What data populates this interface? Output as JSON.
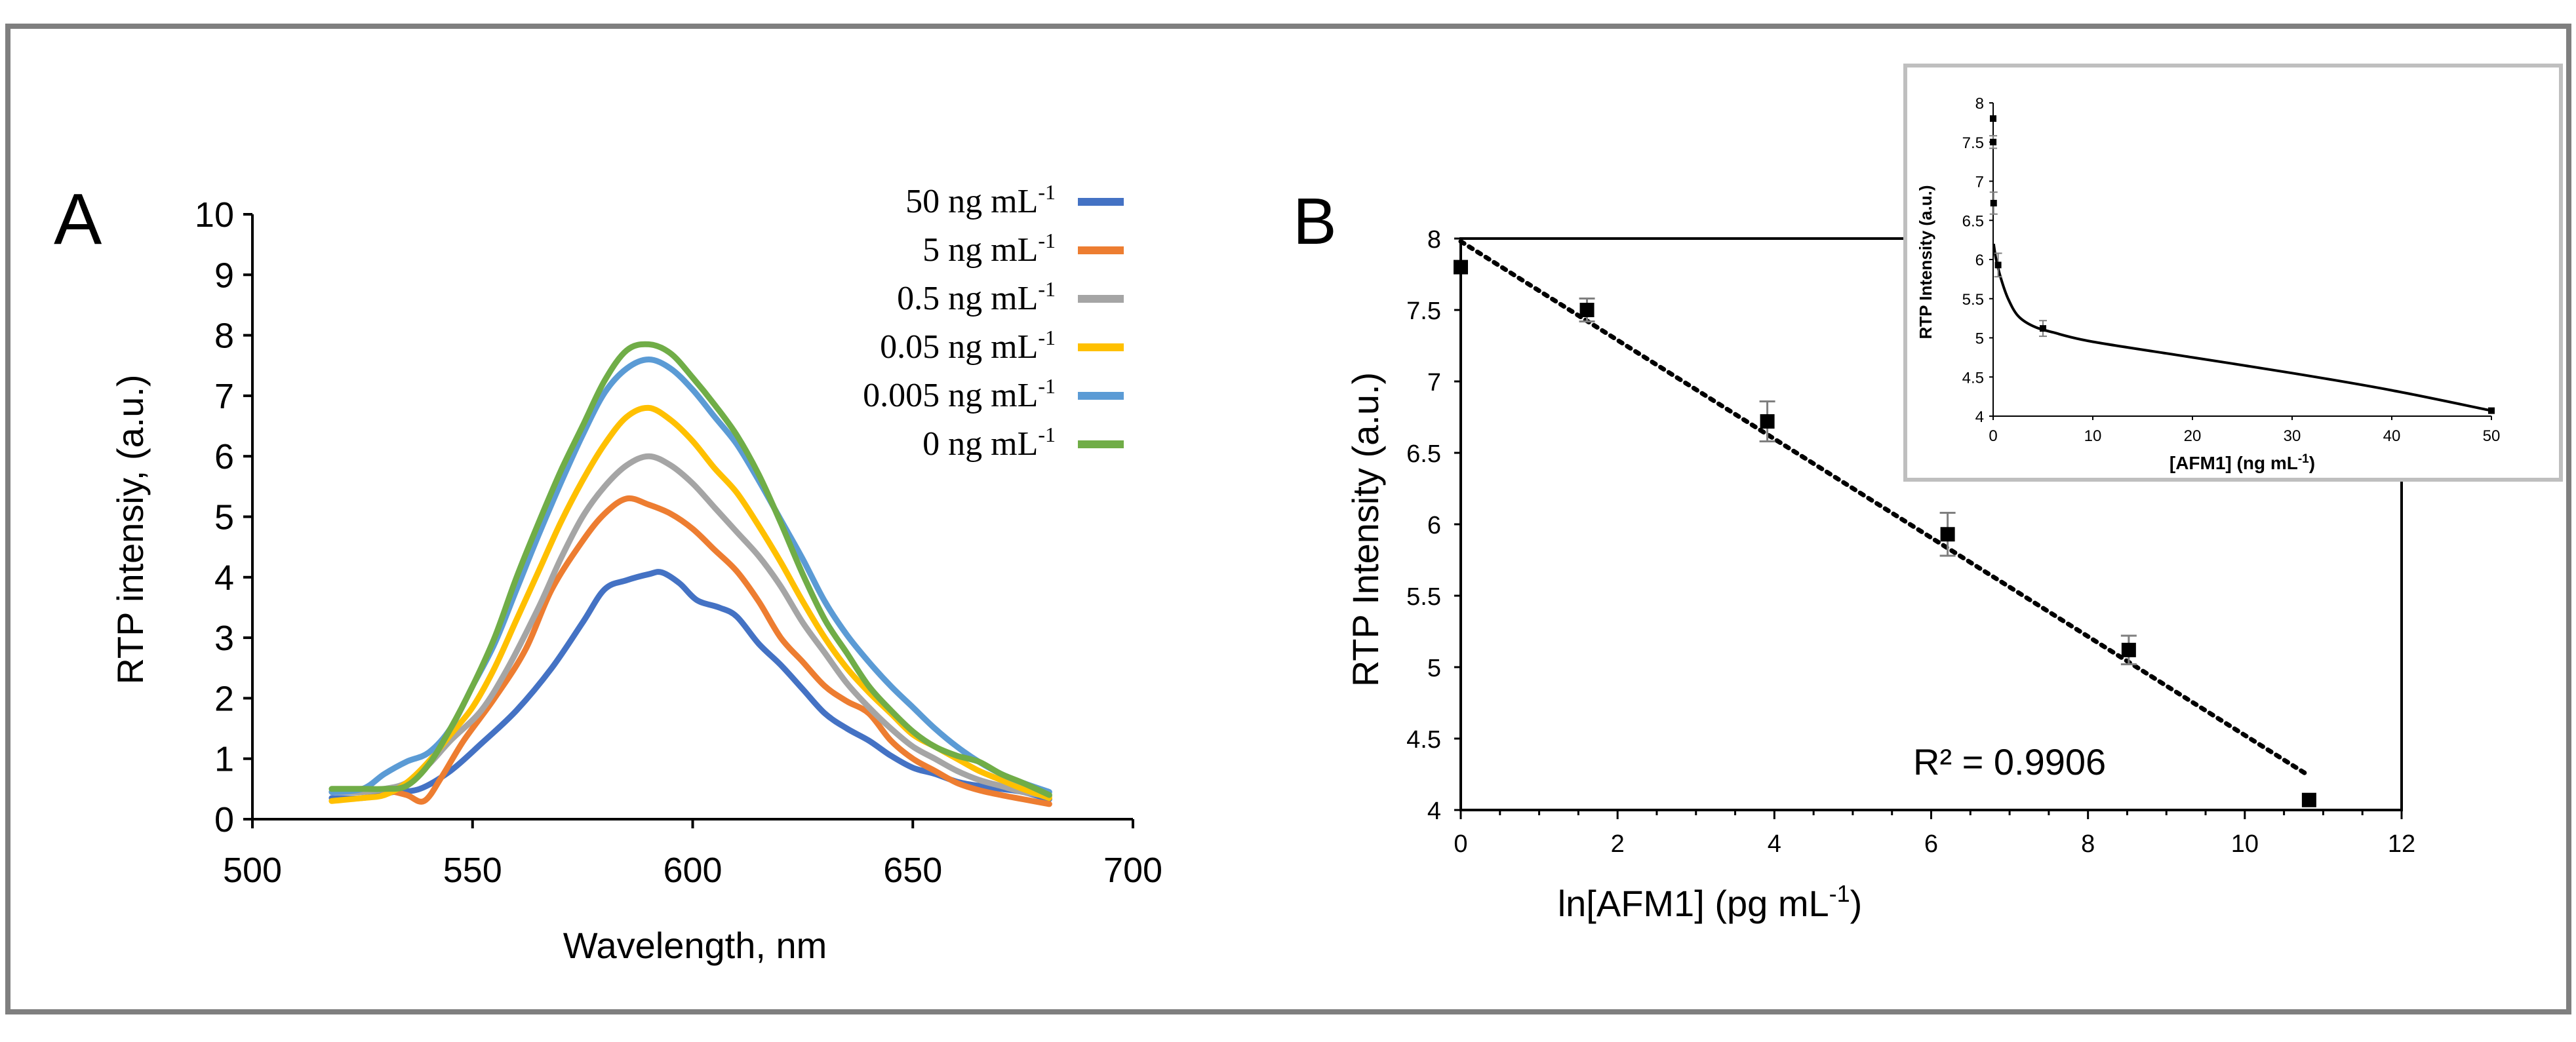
{
  "colors": {
    "frame": "#7f7f7f",
    "inset_frame": "#bfbfbf",
    "blue_dark": "#4472c4",
    "orange": "#ed7d31",
    "gray": "#a5a5a5",
    "yellow": "#ffc000",
    "blue_light": "#5b9bd5",
    "green": "#70ad47",
    "axis": "#000000",
    "error_bar": "#7f7f7f"
  },
  "panel_a": {
    "label": "A",
    "chart_data": {
      "type": "line",
      "xlabel": "Wavelength, nm",
      "ylabel": "RTP intensiy, (a.u.)",
      "xlim": [
        500,
        700
      ],
      "ylim": [
        0,
        10
      ],
      "x_ticks": [
        500,
        550,
        600,
        650,
        700
      ],
      "y_ticks": [
        0,
        1,
        2,
        3,
        4,
        5,
        6,
        7,
        8,
        9,
        10
      ],
      "x_tick_labels": [
        "500",
        "550",
        "600",
        "650",
        "700"
      ],
      "y_tick_labels": [
        "0",
        "1",
        "2",
        "3",
        "4",
        "5",
        "6",
        "7",
        "8",
        "9",
        "10"
      ],
      "legend_position": "top-right",
      "series": [
        {
          "name": "50 ng mL",
          "name_sup": "-1",
          "color": "#4472c4",
          "points": [
            [
              518,
              0.35
            ],
            [
              525,
              0.35
            ],
            [
              532,
              0.45
            ],
            [
              538,
              0.5
            ],
            [
              545,
              0.8
            ],
            [
              552,
              1.25
            ],
            [
              560,
              1.8
            ],
            [
              568,
              2.5
            ],
            [
              575,
              3.25
            ],
            [
              580,
              3.8
            ],
            [
              585,
              3.95
            ],
            [
              590,
              4.05
            ],
            [
              593,
              4.08
            ],
            [
              597,
              3.9
            ],
            [
              601,
              3.62
            ],
            [
              606,
              3.5
            ],
            [
              610,
              3.35
            ],
            [
              615,
              2.9
            ],
            [
              620,
              2.55
            ],
            [
              625,
              2.15
            ],
            [
              630,
              1.75
            ],
            [
              635,
              1.5
            ],
            [
              640,
              1.3
            ],
            [
              645,
              1.05
            ],
            [
              650,
              0.85
            ],
            [
              655,
              0.75
            ],
            [
              660,
              0.62
            ],
            [
              665,
              0.55
            ],
            [
              670,
              0.5
            ],
            [
              675,
              0.45
            ],
            [
              681,
              0.33
            ]
          ]
        },
        {
          "name": "5 ng mL",
          "name_sup": "-1",
          "color": "#ed7d31",
          "points": [
            [
              518,
              0.45
            ],
            [
              525,
              0.5
            ],
            [
              530,
              0.48
            ],
            [
              535,
              0.4
            ],
            [
              539,
              0.3
            ],
            [
              543,
              0.7
            ],
            [
              548,
              1.3
            ],
            [
              555,
              2.0
            ],
            [
              562,
              2.8
            ],
            [
              568,
              3.8
            ],
            [
              575,
              4.6
            ],
            [
              580,
              5.05
            ],
            [
              585,
              5.3
            ],
            [
              590,
              5.2
            ],
            [
              595,
              5.05
            ],
            [
              600,
              4.8
            ],
            [
              605,
              4.45
            ],
            [
              610,
              4.1
            ],
            [
              615,
              3.6
            ],
            [
              620,
              3.0
            ],
            [
              625,
              2.6
            ],
            [
              630,
              2.2
            ],
            [
              635,
              1.95
            ],
            [
              640,
              1.75
            ],
            [
              645,
              1.3
            ],
            [
              650,
              1.0
            ],
            [
              655,
              0.8
            ],
            [
              660,
              0.6
            ],
            [
              665,
              0.48
            ],
            [
              670,
              0.4
            ],
            [
              675,
              0.33
            ],
            [
              681,
              0.25
            ]
          ]
        },
        {
          "name": "0.5 ng mL",
          "name_sup": "-1",
          "color": "#a5a5a5",
          "points": [
            [
              518,
              0.45
            ],
            [
              525,
              0.45
            ],
            [
              530,
              0.5
            ],
            [
              535,
              0.6
            ],
            [
              540,
              0.9
            ],
            [
              545,
              1.3
            ],
            [
              552,
              1.8
            ],
            [
              558,
              2.5
            ],
            [
              565,
              3.5
            ],
            [
              570,
              4.3
            ],
            [
              575,
              5.0
            ],
            [
              580,
              5.5
            ],
            [
              585,
              5.85
            ],
            [
              590,
              6.0
            ],
            [
              595,
              5.85
            ],
            [
              600,
              5.55
            ],
            [
              605,
              5.15
            ],
            [
              610,
              4.75
            ],
            [
              615,
              4.35
            ],
            [
              620,
              3.85
            ],
            [
              625,
              3.25
            ],
            [
              630,
              2.75
            ],
            [
              635,
              2.25
            ],
            [
              640,
              1.85
            ],
            [
              645,
              1.5
            ],
            [
              650,
              1.2
            ],
            [
              655,
              1.0
            ],
            [
              660,
              0.8
            ],
            [
              665,
              0.65
            ],
            [
              670,
              0.55
            ],
            [
              675,
              0.45
            ],
            [
              681,
              0.38
            ]
          ]
        },
        {
          "name": "0.05 ng mL",
          "name_sup": "-1",
          "color": "#ffc000",
          "points": [
            [
              518,
              0.3
            ],
            [
              525,
              0.35
            ],
            [
              530,
              0.4
            ],
            [
              535,
              0.6
            ],
            [
              540,
              0.95
            ],
            [
              545,
              1.4
            ],
            [
              550,
              1.85
            ],
            [
              555,
              2.5
            ],
            [
              560,
              3.3
            ],
            [
              565,
              4.1
            ],
            [
              570,
              4.9
            ],
            [
              575,
              5.6
            ],
            [
              580,
              6.2
            ],
            [
              585,
              6.65
            ],
            [
              590,
              6.8
            ],
            [
              595,
              6.6
            ],
            [
              600,
              6.25
            ],
            [
              605,
              5.8
            ],
            [
              610,
              5.4
            ],
            [
              615,
              4.85
            ],
            [
              620,
              4.25
            ],
            [
              625,
              3.6
            ],
            [
              630,
              3.0
            ],
            [
              635,
              2.5
            ],
            [
              640,
              2.1
            ],
            [
              645,
              1.75
            ],
            [
              650,
              1.4
            ],
            [
              655,
              1.2
            ],
            [
              660,
              1.0
            ],
            [
              665,
              0.8
            ],
            [
              670,
              0.65
            ],
            [
              675,
              0.5
            ],
            [
              681,
              0.35
            ]
          ]
        },
        {
          "name": "0.005 ng mL",
          "name_sup": "-1",
          "color": "#5b9bd5",
          "points": [
            [
              518,
              0.45
            ],
            [
              525,
              0.5
            ],
            [
              530,
              0.75
            ],
            [
              535,
              0.95
            ],
            [
              540,
              1.1
            ],
            [
              545,
              1.5
            ],
            [
              550,
              2.2
            ],
            [
              555,
              2.9
            ],
            [
              560,
              3.8
            ],
            [
              565,
              4.7
            ],
            [
              570,
              5.55
            ],
            [
              575,
              6.35
            ],
            [
              580,
              7.05
            ],
            [
              585,
              7.45
            ],
            [
              590,
              7.6
            ],
            [
              595,
              7.45
            ],
            [
              600,
              7.1
            ],
            [
              605,
              6.65
            ],
            [
              610,
              6.2
            ],
            [
              615,
              5.6
            ],
            [
              620,
              4.95
            ],
            [
              625,
              4.3
            ],
            [
              630,
              3.6
            ],
            [
              635,
              3.05
            ],
            [
              640,
              2.6
            ],
            [
              645,
              2.2
            ],
            [
              650,
              1.85
            ],
            [
              655,
              1.5
            ],
            [
              660,
              1.2
            ],
            [
              665,
              0.95
            ],
            [
              670,
              0.75
            ],
            [
              675,
              0.6
            ],
            [
              681,
              0.45
            ]
          ]
        },
        {
          "name": "0 ng mL",
          "name_sup": "-1",
          "color": "#70ad47",
          "points": [
            [
              518,
              0.5
            ],
            [
              525,
              0.5
            ],
            [
              530,
              0.5
            ],
            [
              535,
              0.55
            ],
            [
              540,
              0.9
            ],
            [
              545,
              1.5
            ],
            [
              550,
              2.2
            ],
            [
              555,
              3.0
            ],
            [
              560,
              4.0
            ],
            [
              565,
              4.9
            ],
            [
              570,
              5.75
            ],
            [
              575,
              6.5
            ],
            [
              580,
              7.25
            ],
            [
              585,
              7.75
            ],
            [
              590,
              7.85
            ],
            [
              595,
              7.7
            ],
            [
              600,
              7.3
            ],
            [
              605,
              6.85
            ],
            [
              610,
              6.35
            ],
            [
              615,
              5.7
            ],
            [
              620,
              4.9
            ],
            [
              625,
              4.05
            ],
            [
              630,
              3.3
            ],
            [
              635,
              2.75
            ],
            [
              640,
              2.2
            ],
            [
              645,
              1.8
            ],
            [
              650,
              1.45
            ],
            [
              655,
              1.2
            ],
            [
              660,
              1.05
            ],
            [
              665,
              0.95
            ],
            [
              670,
              0.75
            ],
            [
              675,
              0.6
            ],
            [
              681,
              0.4
            ]
          ]
        }
      ]
    }
  },
  "panel_b": {
    "label": "B",
    "chart_data": {
      "type": "scatter",
      "xlabel": "ln[AFM1] (pg mL",
      "xlabel_sup": "-1",
      "xlabel_end": ")",
      "ylabel": "RTP Intensity (a.u.)",
      "xlim": [
        0,
        12
      ],
      "ylim": [
        4,
        8
      ],
      "x_ticks": [
        0,
        2,
        4,
        6,
        8,
        10,
        12
      ],
      "y_ticks": [
        4,
        4.5,
        5,
        5.5,
        6,
        6.5,
        7,
        7.5,
        8
      ],
      "x_tick_labels": [
        "0",
        "2",
        "4",
        "6",
        "8",
        "10",
        "12"
      ],
      "y_tick_labels": [
        "4",
        "4.5",
        "5",
        "5.5",
        "6",
        "6.5",
        "7",
        "7.5",
        "8"
      ],
      "points": [
        {
          "x": 0,
          "y": 7.8,
          "err": 0
        },
        {
          "x": 1.61,
          "y": 7.5,
          "err": 0.08
        },
        {
          "x": 3.91,
          "y": 6.72,
          "err": 0.14
        },
        {
          "x": 6.21,
          "y": 5.93,
          "err": 0.15
        },
        {
          "x": 8.52,
          "y": 5.12,
          "err": 0.1
        },
        {
          "x": 10.82,
          "y": 4.07,
          "err": 0
        }
      ],
      "trendline": {
        "x": [
          0,
          10.82
        ],
        "y": [
          7.98,
          4.24
        ],
        "style": "dotted"
      },
      "r2_label": "R² = 0.9906"
    }
  },
  "inset": {
    "chart_data": {
      "type": "scatter",
      "xlabel": "[AFM1] (ng mL",
      "xlabel_sup": "-1",
      "xlabel_end": ")",
      "ylabel": "RTP Intensity (a.u.)",
      "xlim": [
        0,
        50
      ],
      "ylim": [
        4,
        8
      ],
      "x_ticks": [
        0,
        10,
        20,
        30,
        40,
        50
      ],
      "y_ticks": [
        4,
        4.5,
        5,
        5.5,
        6,
        6.5,
        7,
        7.5,
        8
      ],
      "x_tick_labels": [
        "0",
        "10",
        "20",
        "30",
        "40",
        "50"
      ],
      "y_tick_labels": [
        "4",
        "4.5",
        "5",
        "5.5",
        "6",
        "6.5",
        "7",
        "7.5",
        "8"
      ],
      "points": [
        {
          "x": 0,
          "y": 7.8,
          "err": 0
        },
        {
          "x": 0.005,
          "y": 7.5,
          "err": 0.08
        },
        {
          "x": 0.05,
          "y": 6.72,
          "err": 0.14
        },
        {
          "x": 0.5,
          "y": 5.93,
          "err": 0.15
        },
        {
          "x": 5,
          "y": 5.12,
          "err": 0.1
        },
        {
          "x": 50,
          "y": 4.07,
          "err": 0
        }
      ],
      "curve": [
        [
          0.05,
          6.2
        ],
        [
          0.3,
          6.0
        ],
        [
          0.8,
          5.75
        ],
        [
          1.5,
          5.5
        ],
        [
          2.5,
          5.28
        ],
        [
          4,
          5.15
        ],
        [
          6,
          5.07
        ],
        [
          10,
          4.95
        ],
        [
          20,
          4.75
        ],
        [
          30,
          4.55
        ],
        [
          40,
          4.33
        ],
        [
          50,
          4.07
        ]
      ]
    }
  }
}
